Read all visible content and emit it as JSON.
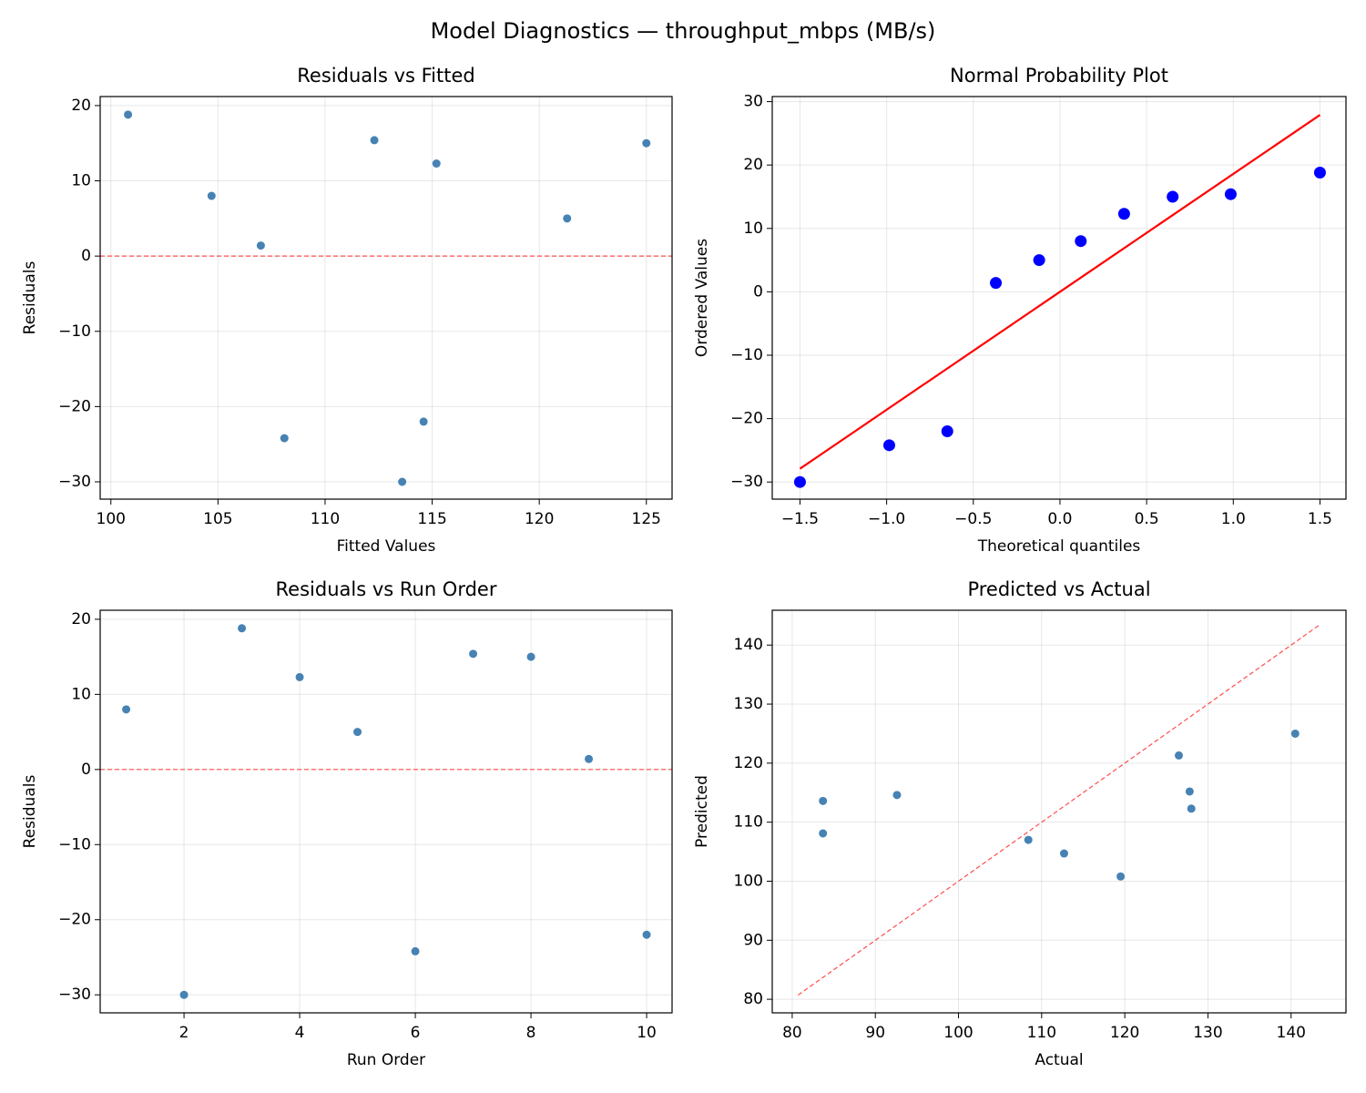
{
  "title": "Model Diagnostics — throughput_mbps (MB/s)",
  "chart_data": [
    {
      "type": "scatter",
      "title": "Residuals vs Fitted",
      "xlabel": "Fitted Values",
      "ylabel": "Residuals",
      "xlim": [
        99.5,
        126.2
      ],
      "ylim": [
        -32.3,
        21.2
      ],
      "xticks": [
        100,
        105,
        110,
        115,
        120,
        125
      ],
      "yticks": [
        {
          "value": -30,
          "label": "−30"
        },
        {
          "value": -20,
          "label": "−20"
        },
        {
          "value": -10,
          "label": "−10"
        },
        0,
        10,
        20
      ],
      "grid": true,
      "hline": 0,
      "hline_color": "#ff4d4d",
      "series": [
        {
          "mode": "markers",
          "color": "#4682b4",
          "x": [
            104.7,
            113.6,
            100.8,
            115.2,
            121.3,
            108.1,
            112.3,
            125.0,
            107.0,
            114.6
          ],
          "values": [
            8.0,
            -30.0,
            18.8,
            12.3,
            5.0,
            -24.2,
            15.4,
            15.0,
            1.4,
            -22.0
          ]
        }
      ]
    },
    {
      "type": "scatter",
      "title": "Normal Probability Plot",
      "xlabel": "Theoretical quantiles",
      "ylabel": "Ordered Values",
      "xlim": [
        -1.66,
        1.65
      ],
      "ylim": [
        -32.7,
        30.8
      ],
      "xticks": [
        {
          "value": -1.5,
          "label": "−1.5"
        },
        {
          "value": -1.0,
          "label": "−1.0"
        },
        {
          "value": -0.5,
          "label": "−0.5"
        },
        {
          "value": 0,
          "label": "0.0"
        },
        0.5,
        {
          "value": 1,
          "label": "1.0"
        },
        1.5
      ],
      "yticks": [
        {
          "value": -30,
          "label": "−30"
        },
        {
          "value": -20,
          "label": "−20"
        },
        {
          "value": -10,
          "label": "−10"
        },
        0,
        10,
        20,
        30
      ],
      "grid": true,
      "series": [
        {
          "mode": "markers",
          "color": "#0000ff",
          "x": [
            -1.5,
            -0.985,
            -0.65,
            -0.37,
            -0.12,
            0.12,
            0.37,
            0.65,
            0.985,
            1.5
          ],
          "values": [
            -30.0,
            -24.2,
            -22.0,
            1.4,
            5.0,
            8.0,
            12.3,
            15.0,
            15.4,
            18.8
          ]
        },
        {
          "mode": "line",
          "style": "solid",
          "color": "#ff0000",
          "x": [
            -1.5,
            1.5
          ],
          "values": [
            -27.9,
            27.9
          ]
        }
      ]
    },
    {
      "type": "scatter",
      "title": "Residuals vs Run Order",
      "xlabel": "Run Order",
      "ylabel": "Residuals",
      "xlim": [
        0.55,
        10.44
      ],
      "ylim": [
        -32.4,
        21.2
      ],
      "xticks": [
        2,
        4,
        6,
        8,
        10
      ],
      "yticks": [
        {
          "value": -30,
          "label": "−30"
        },
        {
          "value": -20,
          "label": "−20"
        },
        {
          "value": -10,
          "label": "−10"
        },
        0,
        10,
        20
      ],
      "grid": true,
      "hline": 0,
      "hline_color": "#ff4d4d",
      "series": [
        {
          "mode": "markers",
          "color": "#4682b4",
          "x": [
            1,
            2,
            3,
            4,
            5,
            6,
            7,
            8,
            9,
            10
          ],
          "values": [
            8.0,
            -30.0,
            18.8,
            12.3,
            5.0,
            -24.2,
            15.4,
            15.0,
            1.4,
            -22.0
          ]
        }
      ]
    },
    {
      "type": "scatter",
      "title": "Predicted vs Actual",
      "xlabel": "Actual",
      "ylabel": "Predicted",
      "xlim": [
        77.6,
        146.6
      ],
      "ylim": [
        77.7,
        145.9
      ],
      "xticks": [
        80,
        90,
        100,
        110,
        120,
        130,
        140
      ],
      "yticks": [
        80,
        90,
        100,
        110,
        120,
        130,
        140
      ],
      "grid": true,
      "series": [
        {
          "mode": "markers",
          "color": "#4682b4",
          "x": [
            112.7,
            83.7,
            119.5,
            127.8,
            126.5,
            83.7,
            128.0,
            140.5,
            108.4,
            92.6
          ],
          "values": [
            104.7,
            113.6,
            100.8,
            115.2,
            121.3,
            108.1,
            112.3,
            125.0,
            107.0,
            114.6
          ]
        },
        {
          "mode": "line",
          "style": "dashed",
          "color": "#ff4d4d",
          "x": [
            80.7,
            143.3
          ],
          "values": [
            80.7,
            143.3
          ]
        }
      ]
    }
  ]
}
